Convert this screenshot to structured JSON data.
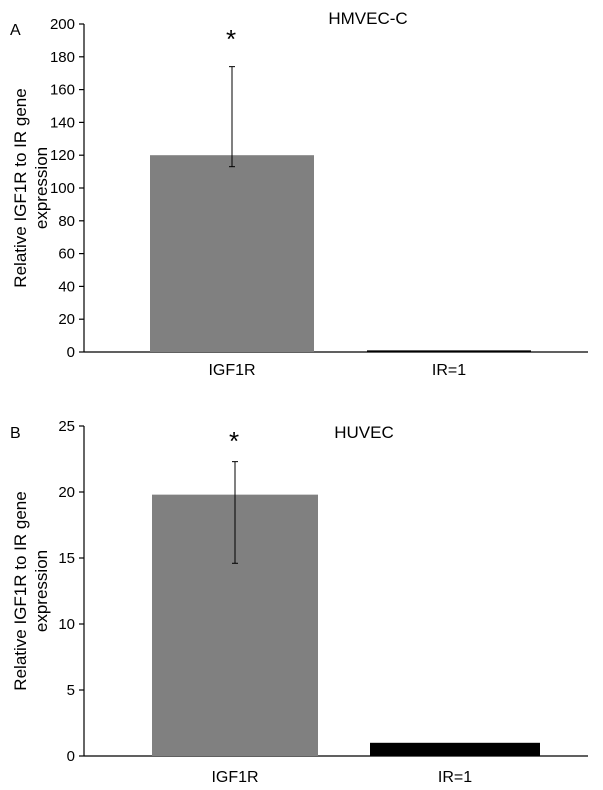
{
  "chart_data": [
    {
      "type": "bar",
      "panel": "A",
      "title": "HMVEC-C",
      "ylabel": "Relative IGF1R to IR gene expression",
      "xlabel": "",
      "categories": [
        "IGF1R",
        "IR=1"
      ],
      "values": [
        120,
        1
      ],
      "error_lower": [
        113,
        1
      ],
      "error_upper": [
        174,
        1
      ],
      "bar_colors": [
        "#808080",
        "#000000"
      ],
      "annotations": [
        "*",
        ""
      ],
      "ylim": [
        0,
        200
      ],
      "yticks": [
        0,
        20,
        40,
        60,
        80,
        100,
        120,
        140,
        160,
        180,
        200
      ],
      "grid": false
    },
    {
      "type": "bar",
      "panel": "B",
      "title": "HUVEC",
      "ylabel": "Relative IGF1R to IR gene expression",
      "xlabel": "",
      "categories": [
        "IGF1R",
        "IR=1"
      ],
      "values": [
        19.8,
        1
      ],
      "error_lower": [
        14.6,
        1
      ],
      "error_upper": [
        22.3,
        1
      ],
      "bar_colors": [
        "#808080",
        "#000000"
      ],
      "annotations": [
        "*",
        ""
      ],
      "ylim": [
        0,
        25
      ],
      "yticks": [
        0,
        5,
        10,
        15,
        20,
        25
      ],
      "grid": false
    }
  ]
}
